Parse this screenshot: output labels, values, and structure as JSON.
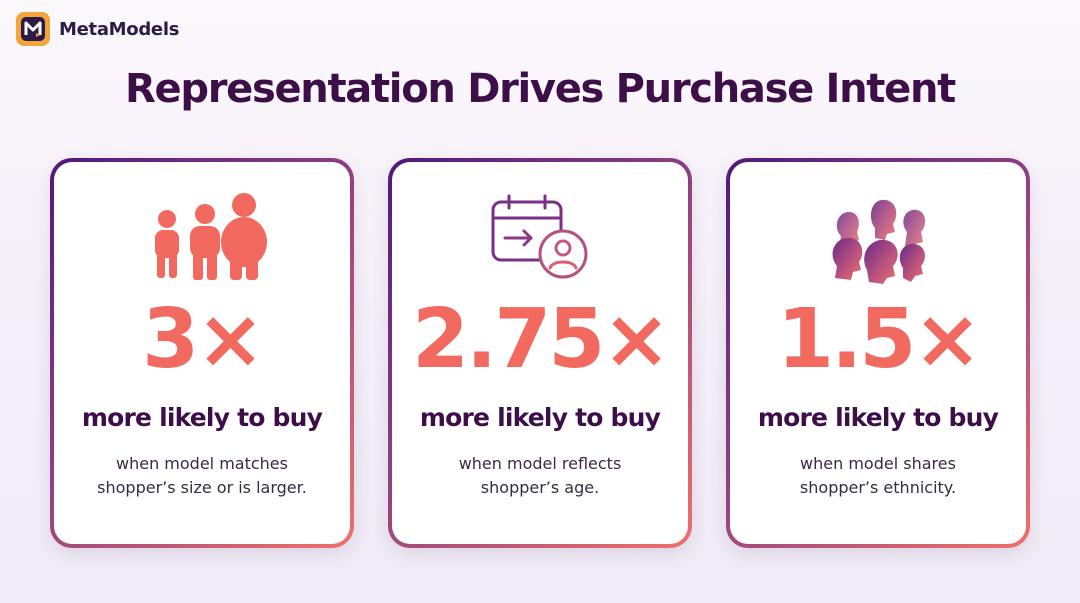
{
  "brand": {
    "name": "MetaModels"
  },
  "title": "Representation Drives Purchase Intent",
  "cards": [
    {
      "icon": "body-sizes-icon",
      "stat": "3×",
      "headline": "more likely to buy",
      "desc_line1": "when model matches",
      "desc_line2": "shopper’s size or is larger."
    },
    {
      "icon": "calendar-person-icon",
      "stat": "2.75×",
      "headline": "more likely to buy",
      "desc_line1": "when model reflects",
      "desc_line2": "shopper’s age."
    },
    {
      "icon": "diverse-faces-icon",
      "stat": "1.5×",
      "headline": "more likely to buy",
      "desc_line1": "when model shares",
      "desc_line2": "shopper’s ethnicity."
    }
  ],
  "colors": {
    "title": "#3d0f48",
    "stat": "#f2695f",
    "border_start": "#4f1a7a",
    "border_end": "#f0706a",
    "logo_bg": "#f3a43a"
  }
}
